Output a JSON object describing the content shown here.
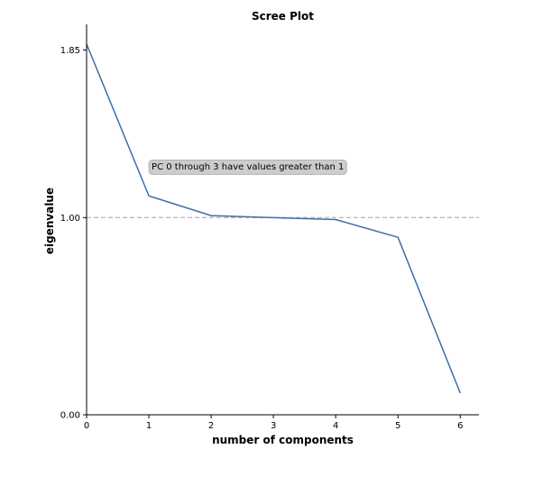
{
  "chart_data": {
    "type": "line",
    "title": "Scree Plot",
    "xlabel": "number of components",
    "ylabel": "eigenvalue",
    "x": [
      0,
      1,
      2,
      3,
      4,
      5,
      6
    ],
    "series": [
      {
        "values": [
          1.88,
          1.11,
          1.01,
          1.0,
          0.99,
          0.9,
          0.11
        ]
      }
    ],
    "xlim": [
      0,
      6.3
    ],
    "ylim": [
      0,
      1.98
    ],
    "xticks": [
      0,
      1,
      2,
      3,
      4,
      5,
      6
    ],
    "yticks": [
      0.0,
      1.0,
      1.85
    ],
    "ytick_labels": [
      "0.00",
      "1.00",
      "1.85"
    ],
    "reference_line": {
      "y": 1.0,
      "style": "dashed",
      "color": "#bbbbbb"
    },
    "annotation": {
      "text": "PC 0 through 3 have values greater than 1",
      "x": 1.0,
      "y": 1.26
    },
    "line_color": "#3a70a8",
    "grid": false
  }
}
